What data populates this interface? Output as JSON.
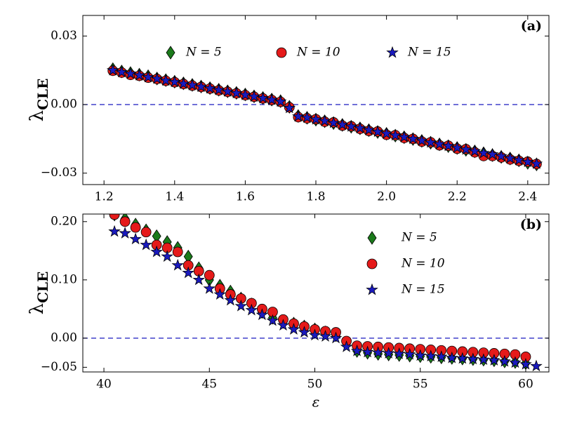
{
  "chart_data": [
    {
      "type": "scatter",
      "panel_label": "(a)",
      "ylabel": {
        "symbol": "λ",
        "subscript": "CLE"
      },
      "legend": "upper center",
      "hline": 0,
      "xlim": [
        1.14,
        2.46
      ],
      "ylim": [
        -0.035,
        0.039
      ],
      "xticks": [
        1.2,
        1.4,
        1.6,
        1.8,
        {
          "value": 2.0,
          "label": "2.0"
        },
        2.2,
        2.4
      ],
      "yticks": [
        {
          "value": -0.03,
          "label": "−0.03"
        },
        {
          "value": 0,
          "label": "0.00"
        },
        {
          "value": 0.03,
          "label": "0.03"
        }
      ],
      "x": [
        1.225,
        1.25,
        1.275,
        1.3,
        1.325,
        1.35,
        1.375,
        1.4,
        1.425,
        1.45,
        1.475,
        1.5,
        1.525,
        1.55,
        1.575,
        1.6,
        1.625,
        1.65,
        1.675,
        1.7,
        1.725,
        1.75,
        1.775,
        1.8,
        1.825,
        1.85,
        1.875,
        1.9,
        1.925,
        1.95,
        1.975,
        2.0,
        2.025,
        2.05,
        2.075,
        2.1,
        2.125,
        2.15,
        2.175,
        2.2,
        2.225,
        2.25,
        2.275,
        2.3,
        2.325,
        2.35,
        2.375,
        2.4,
        2.425
      ],
      "series": [
        {
          "name": "N = 5",
          "marker": "diamond",
          "color": "#1b7a1b",
          "values": [
            0.0155,
            0.0145,
            0.0138,
            0.0131,
            0.0124,
            0.0114,
            0.0107,
            0.01,
            0.0093,
            0.0086,
            0.0079,
            0.0072,
            0.0065,
            0.0058,
            0.0051,
            0.0044,
            0.0036,
            0.0029,
            0.0022,
            0.0015,
            -0.001,
            -0.005,
            -0.0058,
            -0.0066,
            -0.0073,
            -0.0081,
            -0.0089,
            -0.0097,
            -0.0104,
            -0.0112,
            -0.012,
            -0.0128,
            -0.0136,
            -0.0143,
            -0.0151,
            -0.0159,
            -0.0167,
            -0.0174,
            -0.0182,
            -0.019,
            -0.0198,
            -0.0205,
            -0.0213,
            -0.0221,
            -0.0229,
            -0.0236,
            -0.0244,
            -0.0255,
            -0.0262
          ]
        },
        {
          "name": "N = 10",
          "marker": "circle",
          "color": "#e51a1a",
          "values": [
            0.0148,
            0.014,
            0.013,
            0.0126,
            0.0118,
            0.0112,
            0.0104,
            0.0098,
            0.009,
            0.0083,
            0.0077,
            0.007,
            0.0062,
            0.0056,
            0.0049,
            0.0041,
            0.0034,
            0.0027,
            0.002,
            0.0012,
            -0.0012,
            -0.0055,
            -0.006,
            -0.0064,
            -0.0075,
            -0.0078,
            -0.0092,
            -0.0095,
            -0.0106,
            -0.0115,
            -0.0118,
            -0.0132,
            -0.0134,
            -0.0146,
            -0.015,
            -0.0162,
            -0.0165,
            -0.0178,
            -0.018,
            -0.0193,
            -0.0195,
            -0.0209,
            -0.0225,
            -0.0225,
            -0.0231,
            -0.024,
            -0.0246,
            -0.025,
            -0.026
          ]
        },
        {
          "name": "N = 15",
          "marker": "star",
          "color": "#1a1abf",
          "values": [
            0.015,
            0.0142,
            0.0135,
            0.0128,
            0.012,
            0.0113,
            0.0105,
            0.0099,
            0.0091,
            0.0085,
            0.0078,
            0.0071,
            0.0064,
            0.0057,
            0.005,
            0.0042,
            0.0035,
            0.0028,
            0.0021,
            0.0013,
            -0.0015,
            -0.0052,
            -0.0057,
            -0.0065,
            -0.0072,
            -0.008,
            -0.0088,
            -0.0096,
            -0.0103,
            -0.0111,
            -0.0119,
            -0.0127,
            -0.0135,
            -0.0142,
            -0.015,
            -0.0158,
            -0.0166,
            -0.0173,
            -0.0181,
            -0.0189,
            -0.0197,
            -0.0204,
            -0.0212,
            -0.0218,
            -0.0226,
            -0.0235,
            -0.0243,
            -0.0251,
            -0.0259
          ]
        }
      ]
    },
    {
      "type": "scatter",
      "panel_label": "(b)",
      "ylabel": {
        "symbol": "λ",
        "subscript": "CLE"
      },
      "xlabel": "ε",
      "legend": "upper right",
      "hline": 0,
      "xlim": [
        39,
        61.1
      ],
      "ylim": [
        -0.058,
        0.213
      ],
      "xticks": [
        40,
        45,
        50,
        55,
        60
      ],
      "yticks": [
        {
          "value": -0.05,
          "label": "−0.05"
        },
        {
          "value": 0,
          "label": "0.00"
        },
        {
          "value": 0.1,
          "label": "0.10"
        },
        {
          "value": 0.2,
          "label": "0.20"
        }
      ],
      "x": [
        40.5,
        41,
        41.5,
        42,
        42.5,
        43,
        43.5,
        44,
        44.5,
        45,
        45.5,
        46,
        46.5,
        47,
        47.5,
        48,
        48.5,
        49,
        49.5,
        50,
        50.5,
        51,
        51.5,
        52,
        52.5,
        53,
        53.5,
        54,
        54.5,
        55,
        55.5,
        56,
        56.5,
        57,
        57.5,
        58,
        58.5,
        59,
        59.5,
        60,
        60.5
      ],
      "series": [
        {
          "name": "N = 5",
          "marker": "diamond",
          "color": "#1b7a1b",
          "values": [
            0.212,
            0.205,
            0.195,
            0.185,
            0.175,
            0.165,
            0.155,
            0.14,
            0.12,
            0.1,
            0.09,
            0.08,
            0.068,
            0.058,
            0.045,
            0.035,
            0.028,
            0.025,
            0.02,
            0.015,
            0.01,
            0.005,
            -0.008,
            -0.022,
            -0.025,
            -0.027,
            -0.028,
            -0.029,
            -0.03,
            -0.031,
            -0.032,
            -0.033,
            -0.034,
            -0.035,
            -0.036,
            -0.037,
            -0.038,
            -0.04,
            -0.041,
            -0.043,
            null
          ]
        },
        {
          "name": "N = 10",
          "marker": "circle",
          "color": "#e51a1a",
          "values": [
            0.212,
            0.2,
            0.19,
            0.182,
            0.16,
            0.155,
            0.148,
            0.125,
            0.115,
            0.108,
            0.085,
            0.075,
            0.068,
            0.06,
            0.05,
            0.045,
            0.032,
            0.025,
            0.02,
            0.015,
            0.012,
            0.01,
            -0.005,
            -0.013,
            -0.014,
            -0.015,
            -0.016,
            -0.017,
            -0.018,
            -0.019,
            -0.02,
            -0.021,
            -0.022,
            -0.023,
            -0.024,
            -0.025,
            -0.026,
            -0.027,
            -0.028,
            -0.032,
            null
          ]
        },
        {
          "name": "N = 15",
          "marker": "star",
          "color": "#1a1abf",
          "values": [
            0.183,
            0.18,
            0.17,
            0.16,
            0.148,
            0.14,
            0.125,
            0.112,
            0.1,
            0.085,
            0.075,
            0.065,
            0.055,
            0.048,
            0.04,
            0.03,
            0.022,
            0.015,
            0.01,
            0.005,
            0.003,
            0.0,
            -0.015,
            -0.022,
            -0.024,
            -0.025,
            -0.026,
            -0.027,
            -0.028,
            -0.03,
            -0.031,
            -0.032,
            -0.034,
            -0.035,
            -0.036,
            -0.037,
            -0.038,
            -0.04,
            -0.042,
            -0.045,
            -0.048
          ]
        }
      ]
    }
  ]
}
